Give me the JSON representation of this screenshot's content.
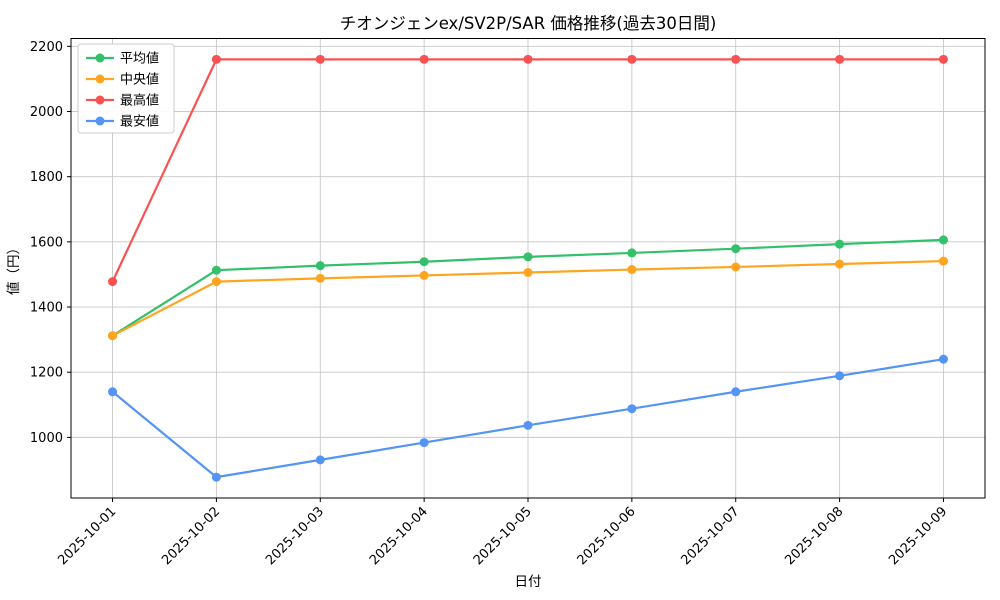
{
  "chart_data": {
    "type": "line",
    "title": "チオンジェンex/SV2P/SAR 価格推移(過去30日間)",
    "xlabel": "日付",
    "ylabel": "値（円）",
    "x": [
      "2025-10-01",
      "2025-10-02",
      "2025-10-03",
      "2025-10-04",
      "2025-10-05",
      "2025-10-06",
      "2025-10-07",
      "2025-10-08",
      "2025-10-09"
    ],
    "series": [
      {
        "name": "平均値",
        "color": "#33c06a",
        "values": [
          1312,
          1513,
          1527,
          1539,
          1554,
          1566,
          1579,
          1593,
          1606
        ]
      },
      {
        "name": "中央値",
        "color": "#ffa41e",
        "values": [
          1312,
          1478,
          1488,
          1497,
          1506,
          1515,
          1523,
          1532,
          1541
        ]
      },
      {
        "name": "最高値",
        "color": "#fa5252",
        "values": [
          1478,
          2160,
          2160,
          2160,
          2160,
          2160,
          2160,
          2160,
          2160
        ]
      },
      {
        "name": "最安値",
        "color": "#5494f5",
        "values": [
          1140,
          878,
          931,
          984,
          1037,
          1088,
          1140,
          1189,
          1240
        ]
      }
    ],
    "ylim": [
      814,
      2224
    ],
    "yticks": [
      1000,
      1200,
      1400,
      1600,
      1800,
      2000,
      2200
    ],
    "grid": true,
    "legend_position": "upper left",
    "marker": "circle",
    "colors": {
      "grid": "#c8c8c8",
      "axis": "#000000",
      "background": "#ffffff"
    }
  }
}
